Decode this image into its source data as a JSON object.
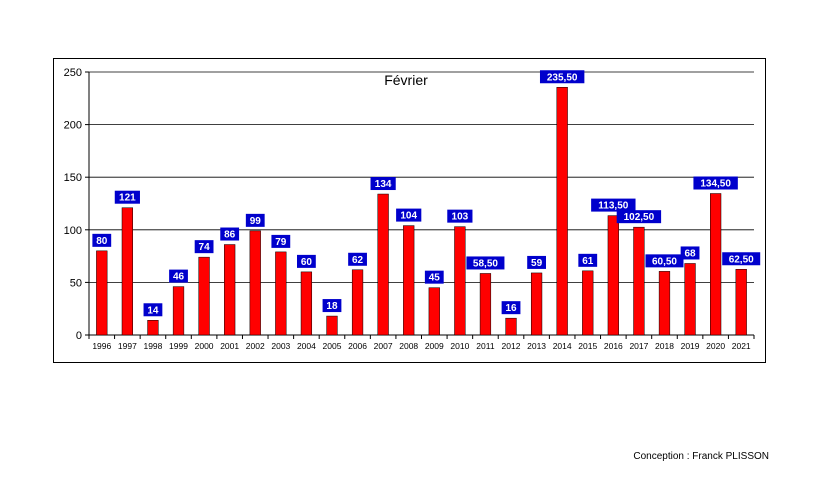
{
  "chart_data": {
    "type": "bar",
    "title": "Février",
    "xlabel": "",
    "ylabel": "",
    "ylim": [
      0,
      250
    ],
    "yticks": [
      "0",
      "50",
      "100",
      "150",
      "200",
      "250"
    ],
    "grid": true,
    "legend": "none",
    "categories": [
      "1996",
      "1997",
      "1998",
      "1999",
      "2000",
      "2001",
      "2002",
      "2003",
      "2004",
      "2005",
      "2006",
      "2007",
      "2008",
      "2009",
      "2010",
      "2011",
      "2012",
      "2013",
      "2014",
      "2015",
      "2016",
      "2017",
      "2018",
      "2019",
      "2020",
      "2021"
    ],
    "values": [
      80,
      121,
      14,
      46,
      74,
      86,
      99,
      79,
      60,
      18,
      62,
      134,
      104,
      45,
      103,
      58.5,
      16,
      59,
      235.5,
      61,
      113.5,
      102.5,
      60.5,
      68,
      134.5,
      62.5
    ],
    "data_labels": [
      "80",
      "121",
      "14",
      "46",
      "74",
      "86",
      "99",
      "79",
      "60",
      "18",
      "62",
      "134",
      "104",
      "45",
      "103",
      "58,50",
      "16",
      "59",
      "235,50",
      "61",
      "113,50",
      "102,50",
      "60,50",
      "68",
      "134,50",
      "62,50"
    ],
    "colors": {
      "bar": "#ff0000",
      "label_bg": "#0000cc",
      "label_text": "#ffffff",
      "grid": "#000000"
    }
  },
  "credit": "Conception : Franck PLISSON"
}
